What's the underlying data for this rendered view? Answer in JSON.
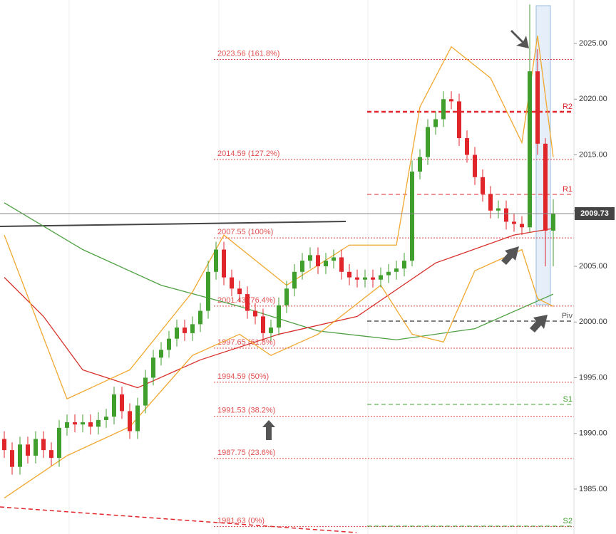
{
  "chart_data": {
    "type": "candlestick",
    "ylim": [
      1980.97,
      2028.9
    ],
    "yticks": [
      {
        "value": 1985,
        "label": "1985.00"
      },
      {
        "value": 1990,
        "label": "1990.00"
      },
      {
        "value": 1995,
        "label": "1995.00"
      },
      {
        "value": 2000,
        "label": "2000.00"
      },
      {
        "value": 2005,
        "label": "2005.00"
      },
      {
        "value": 2010,
        "label": "2010.00"
      },
      {
        "value": 2015,
        "label": "2015.00"
      },
      {
        "value": 2020,
        "label": "2020.00"
      },
      {
        "value": 2025,
        "label": "2025.00"
      }
    ],
    "up_color": "#3f9e2c",
    "down_color": "#e0262b",
    "open": [
      1989.5,
      1988.5,
      1987,
      1989,
      1988,
      1989.5,
      1988.5,
      1987.8,
      1990.5,
      1991,
      1990.8,
      1991,
      1990.6,
      1991.2,
      1991.5,
      1993.5,
      1992,
      1990.2,
      1992.5,
      1995,
      1996.8,
      1997.5,
      1998.5,
      1999.5,
      1999,
      1999.8,
      2001,
      2004.5,
      2006.5,
      2004,
      2003,
      2002.5,
      2001,
      2000.5,
      1999,
      1999.5,
      2001.5,
      2003,
      2004.5,
      2005.5,
      2006,
      2005,
      2005.5,
      2005.8,
      2004.5,
      2004,
      2003.8,
      2004,
      2003.8,
      2004.2,
      2004.5,
      2004.8,
      2005.5,
      2013.5,
      2014.8,
      2017.5,
      2018.2,
      2020,
      2019.8,
      2016.5,
      2015,
      2013,
      2011.5,
      2010,
      2010.2,
      2009,
      2008.8,
      2008.5,
      2022.5,
      2016,
      2008.2
    ],
    "high": [
      1990.2,
      1989.2,
      1989.7,
      1989.7,
      1990.2,
      1990.2,
      1989.2,
      1991.2,
      1991.7,
      1991.7,
      1991.7,
      1991.7,
      1991.9,
      1992.2,
      1994.2,
      1994.2,
      1992.7,
      1993.2,
      1995.7,
      1997.5,
      1998.2,
      1999.2,
      2000.2,
      2000.2,
      2000.5,
      2001.7,
      2005.5,
      2007.2,
      2007.2,
      2004.7,
      2003.7,
      2003.2,
      2001.7,
      2001.2,
      2000.2,
      2002.2,
      2003.7,
      2005.2,
      2006.2,
      2006.7,
      2006.7,
      2006.2,
      2006.5,
      2006.5,
      2005.2,
      2004.7,
      2004.7,
      2004.7,
      2004.9,
      2005.2,
      2005.5,
      2006.2,
      2014.5,
      2015.5,
      2018.2,
      2018.9,
      2020.7,
      2020.7,
      2020.5,
      2017.2,
      2015.7,
      2013.7,
      2012.2,
      2010.9,
      2010.9,
      2009.7,
      2009.5,
      2028.5,
      2024.5,
      2016.5,
      2011
    ],
    "low": [
      1987.8,
      1986.3,
      1986.3,
      1987.3,
      1987.3,
      1987.8,
      1987.1,
      1987,
      1989.8,
      1990.1,
      1990.1,
      1989.9,
      1989.9,
      1990.5,
      1990.8,
      1991.3,
      1989.5,
      1989.5,
      1991.8,
      1994.3,
      1996.1,
      1996.8,
      1997.8,
      1998.3,
      1998.3,
      1999.1,
      2000.3,
      2003.8,
      2003.3,
      2002.3,
      2001.8,
      2000.3,
      1999.8,
      1998.3,
      1998.3,
      1998.8,
      2000.8,
      2002.3,
      2003.8,
      2004.8,
      2004.3,
      2004.3,
      2004.8,
      2003.8,
      2003.3,
      2003.1,
      2003.1,
      2003.1,
      2003.1,
      2003.5,
      2003.8,
      2004.1,
      2005,
      2012.8,
      2014.1,
      2016.8,
      2017.5,
      2019.1,
      2015.8,
      2014.3,
      2012.3,
      2010.8,
      2009.3,
      2009.3,
      2008.3,
      2008.1,
      2007.8,
      2008,
      2015,
      2005,
      2005
    ],
    "close": [
      1988.5,
      1987,
      1989,
      1988,
      1989.5,
      1988.5,
      1987.8,
      1990.5,
      1991,
      1990.8,
      1991,
      1990.6,
      1991.2,
      1991.5,
      1993.5,
      1992,
      1990.2,
      1992.5,
      1995,
      1996.8,
      1997.5,
      1998.5,
      1999.5,
      1999,
      1999.8,
      2001,
      2004.5,
      2006.5,
      2004,
      2003,
      2002.5,
      2001,
      2000.5,
      1999,
      1999.5,
      2001.5,
      2003,
      2004.5,
      2005.5,
      2006,
      2005,
      2005.5,
      2005.8,
      2004.5,
      2004,
      2003.8,
      2004,
      2003.8,
      2004.2,
      2004.5,
      2004.8,
      2005.5,
      2013.5,
      2014.8,
      2017.5,
      2018.2,
      2020,
      2019.8,
      2016.5,
      2015,
      2013,
      2011.5,
      2010,
      2010.2,
      2009,
      2008.8,
      2008.5,
      2022.5,
      2016,
      2008.2,
      2009.73
    ],
    "overlays": [
      {
        "color": "#4fa043",
        "x": [
          0,
          10,
          20,
          30,
          40,
          50,
          60,
          70
        ],
        "values": [
          2010.7,
          2006.5,
          2003.3,
          2001.4,
          1999.2,
          1998.4,
          1999.4,
          2002.5
        ]
      },
      {
        "color": "#d7302a",
        "x": [
          0,
          5,
          10,
          17,
          25,
          35,
          45,
          55,
          65,
          70
        ],
        "values": [
          2004,
          2000.5,
          1995.7,
          1994.1,
          1996.6,
          1998.9,
          2000.5,
          2005.3,
          2007.8,
          2008.4
        ]
      },
      {
        "color": "#f0a830",
        "x": [
          0,
          8,
          16,
          24,
          28,
          36,
          44,
          50,
          53,
          57,
          62,
          66,
          68,
          70
        ],
        "values": [
          2007.8,
          1993.1,
          1995.7,
          2002.7,
          2007.8,
          2003.3,
          2006.9,
          2006.9,
          2019.3,
          2024.7,
          2021.9,
          2016.1,
          2025.7,
          2014.8
        ]
      },
      {
        "color": "#f0a830",
        "x": [
          0,
          8,
          16,
          24,
          30,
          34,
          40,
          48,
          52,
          56,
          60,
          66,
          68,
          70
        ],
        "values": [
          1984.2,
          1988,
          1990.6,
          1997,
          1998.9,
          1997,
          1998.9,
          2003.3,
          1998.9,
          1998.2,
          2004.6,
          2006.5,
          2002.1,
          2001.4
        ]
      }
    ],
    "fib_levels": [
      {
        "value": 2023.56,
        "label": "2023.56 (161.8%)"
      },
      {
        "value": 2014.59,
        "label": "2014.59 (127.2%)"
      },
      {
        "value": 2007.55,
        "label": "2007.55 (100%)"
      },
      {
        "value": 2001.43,
        "label": "2001.43 (76.4%)"
      },
      {
        "value": 1997.65,
        "label": "1997.65 (61.8%)"
      },
      {
        "value": 1994.59,
        "label": "1994.59 (50%)"
      },
      {
        "value": 1991.53,
        "label": "1991.53 (38.2%)"
      },
      {
        "value": 1987.75,
        "label": "1987.75 (23.6%)"
      },
      {
        "value": 1981.63,
        "label": "1981.63 (0%)"
      }
    ],
    "pivots": [
      {
        "value": 2018.87,
        "label": "R2",
        "color": "#e0262b",
        "width": 2.5
      },
      {
        "value": 2011.45,
        "label": "R1",
        "color": "#e0262b",
        "width": 1
      },
      {
        "value": 2000.08,
        "label": "Piv",
        "color": "#555555",
        "width": 1.5
      },
      {
        "value": 1992.6,
        "label": "S1",
        "color": "#3f9e2c",
        "width": 1
      },
      {
        "value": 1981.67,
        "label": "S2",
        "color": "#3f9e2c",
        "width": 1
      }
    ],
    "current_price": {
      "value": 2009.73,
      "label": "2009.73"
    }
  }
}
